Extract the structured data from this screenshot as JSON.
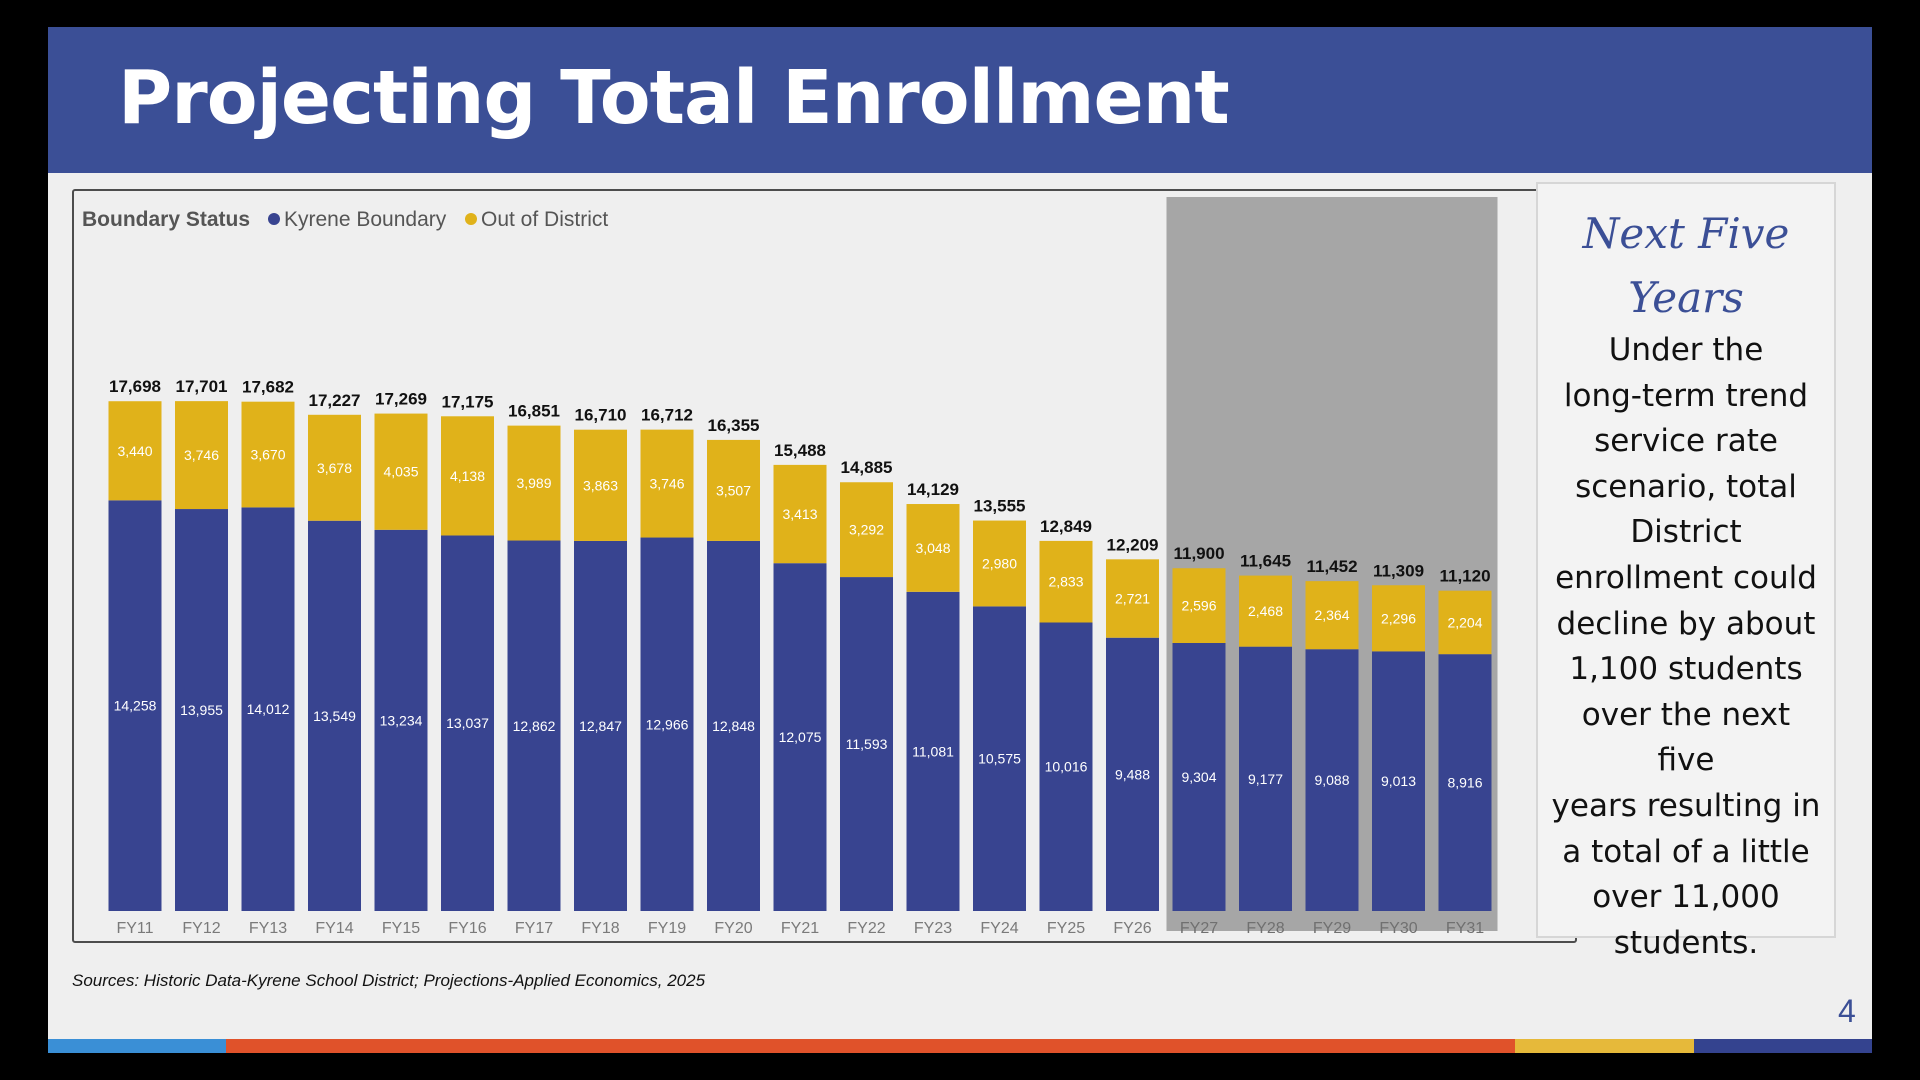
{
  "slide": {
    "title": "Projecting Total Enrollment",
    "page_number": "4",
    "sources": "Sources: Historic Data-Kyrene School District; Projections-Applied Economics, 2025",
    "colors": {
      "header": "#3b4f96",
      "kyrene": "#384490",
      "out_of_district": "#e0b21a",
      "projection_shade": "#a6a6a6",
      "stripe_blue": "#3a8fd6",
      "stripe_orange": "#e0522a",
      "stripe_yellow": "#e6b93a",
      "stripe_navy": "#34438f"
    }
  },
  "side_panel": {
    "heading_line1": "Next Five",
    "heading_line2": "Years",
    "body_lines": [
      "Under the",
      "long-term trend",
      "service rate",
      "scenario, total",
      "District",
      "enrollment could",
      "decline by about",
      "1,100 students",
      "over the next five",
      "years resulting in",
      "a total of a little",
      "over 11,000",
      "students."
    ]
  },
  "chart_data": {
    "type": "bar",
    "stacked": true,
    "legend_title": "Boundary Status",
    "legend_position": "top-left",
    "categories": [
      "FY11",
      "FY12",
      "FY13",
      "FY14",
      "FY15",
      "FY16",
      "FY17",
      "FY18",
      "FY19",
      "FY20",
      "FY21",
      "FY22",
      "FY23",
      "FY24",
      "FY25",
      "FY26",
      "FY27",
      "FY28",
      "FY29",
      "FY30",
      "FY31"
    ],
    "series": [
      {
        "name": "Kyrene Boundary",
        "color": "#384490",
        "values": [
          14258,
          13955,
          14012,
          13549,
          13234,
          13037,
          12862,
          12847,
          12966,
          12848,
          12075,
          11593,
          11081,
          10575,
          10016,
          9488,
          9304,
          9177,
          9088,
          9013,
          8916
        ],
        "labels": [
          "14,258",
          "13,955",
          "14,012",
          "13,549",
          "13,234",
          "13,037",
          "12,862",
          "12,847",
          "12,966",
          "12,848",
          "12,075",
          "11,593",
          "11,081",
          "10,575",
          "10,016",
          "9,488",
          "9,304",
          "9,177",
          "9,088",
          "9,013",
          "8,916"
        ]
      },
      {
        "name": "Out of District",
        "color": "#e0b21a",
        "values": [
          3440,
          3746,
          3670,
          3678,
          4035,
          4138,
          3989,
          3863,
          3746,
          3507,
          3413,
          3292,
          3048,
          2980,
          2833,
          2721,
          2596,
          2468,
          2364,
          2296,
          2204
        ],
        "labels": [
          "3,440",
          "3,746",
          "3,670",
          "3,678",
          "4,035",
          "4,138",
          "3,989",
          "3,863",
          "3,746",
          "3,507",
          "3,413",
          "3,292",
          "3,048",
          "2,980",
          "2,833",
          "2,721",
          "2,596",
          "2,468",
          "2,364",
          "2,296",
          "2,204"
        ]
      }
    ],
    "totals": [
      17698,
      17701,
      17682,
      17227,
      17269,
      17175,
      16851,
      16710,
      16712,
      16355,
      15488,
      14885,
      14129,
      13555,
      12849,
      12209,
      11900,
      11645,
      11452,
      11309,
      11120
    ],
    "total_labels": [
      "17,698",
      "17,701",
      "17,682",
      "17,227",
      "17,269",
      "17,175",
      "16,851",
      "16,710",
      "16,712",
      "16,355",
      "15,488",
      "14,885",
      "14,129",
      "13,555",
      "12,849",
      "12,209",
      "11,900",
      "11,645",
      "11,452",
      "11,309",
      "11,120"
    ],
    "projection_start": "FY27",
    "ylim": [
      0,
      18400
    ],
    "grid": false
  }
}
